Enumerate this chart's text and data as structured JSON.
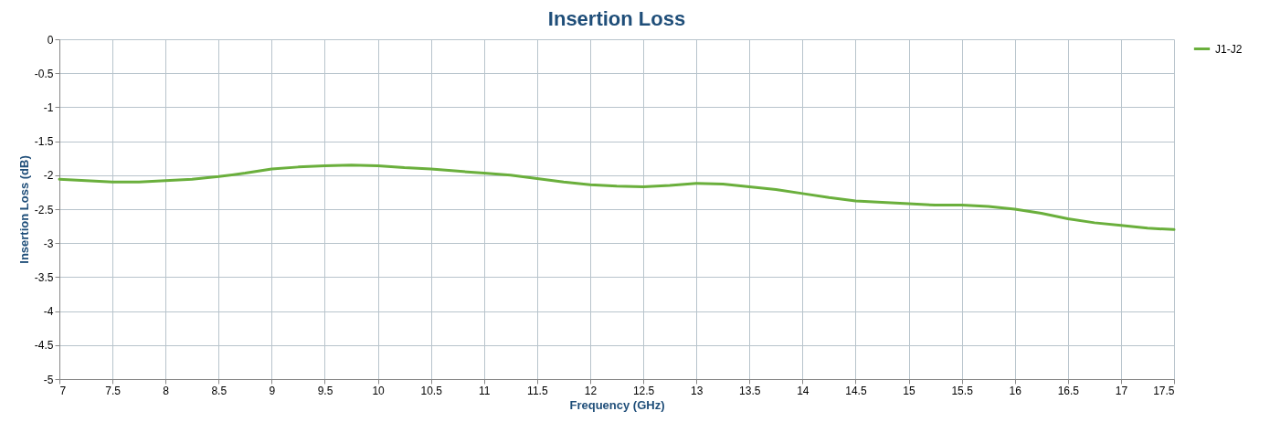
{
  "chart_data": {
    "type": "line",
    "title": "Insertion Loss",
    "xlabel": "Frequency (GHz)",
    "ylabel": "Insertion Loss (dB)",
    "x": [
      7,
      7.25,
      7.5,
      7.75,
      8,
      8.25,
      8.5,
      8.75,
      9,
      9.25,
      9.5,
      9.75,
      10,
      10.25,
      10.5,
      10.75,
      11,
      11.25,
      11.5,
      11.75,
      12,
      12.25,
      12.5,
      12.75,
      13,
      13.25,
      13.5,
      13.75,
      14,
      14.25,
      14.5,
      14.75,
      15,
      15.25,
      15.5,
      15.75,
      16,
      16.25,
      16.5,
      16.75,
      17,
      17.25,
      17.5
    ],
    "series": [
      {
        "name": "J1-J2",
        "color": "#6aaf3c",
        "values": [
          -2.06,
          -2.08,
          -2.1,
          -2.1,
          -2.08,
          -2.06,
          -2.02,
          -1.97,
          -1.91,
          -1.88,
          -1.86,
          -1.85,
          -1.86,
          -1.89,
          -1.91,
          -1.94,
          -1.97,
          -2.0,
          -2.05,
          -2.1,
          -2.14,
          -2.16,
          -2.17,
          -2.15,
          -2.12,
          -2.13,
          -2.17,
          -2.21,
          -2.27,
          -2.33,
          -2.38,
          -2.4,
          -2.42,
          -2.44,
          -2.44,
          -2.46,
          -2.5,
          -2.56,
          -2.64,
          -2.7,
          -2.74,
          -2.78,
          -2.8
        ]
      }
    ],
    "xlim": [
      7,
      17.5
    ],
    "xticks": [
      7,
      7.5,
      8,
      8.5,
      9,
      9.5,
      10,
      10.5,
      11,
      11.5,
      12,
      12.5,
      13,
      13.5,
      14,
      14.5,
      15,
      15.5,
      16,
      16.5,
      17,
      17.5
    ],
    "ylim": [
      -5,
      0
    ],
    "yticks": [
      -5,
      -4.5,
      -4,
      -3.5,
      -3,
      -2.5,
      -2,
      -1.5,
      -1,
      -0.5,
      0
    ],
    "grid": true,
    "legend": "right",
    "marker": "none",
    "line_style": "solid"
  }
}
